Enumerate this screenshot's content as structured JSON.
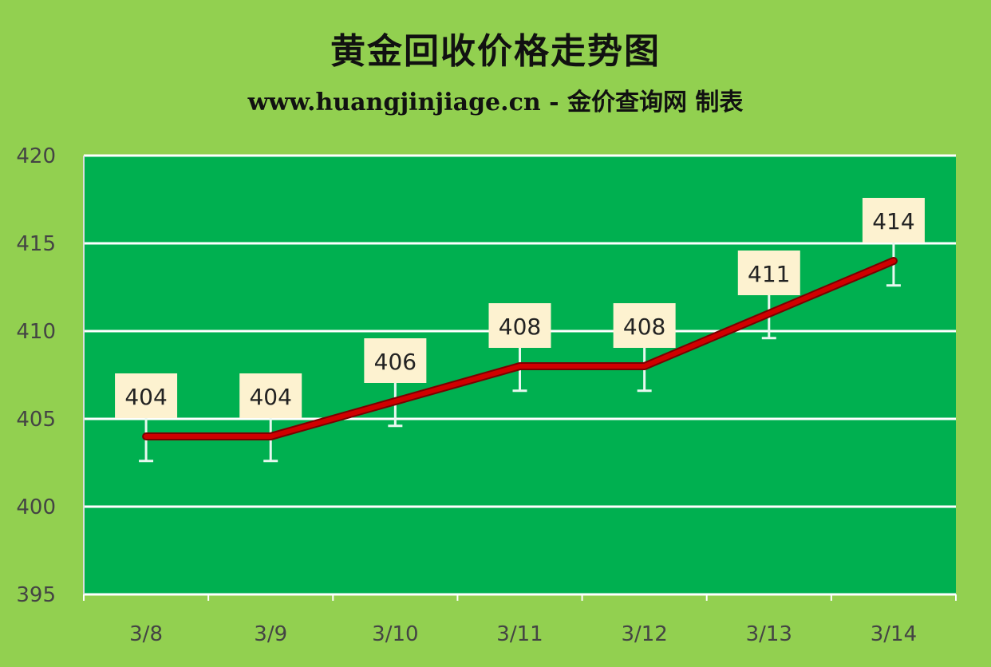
{
  "title": "黄金回收价格走势图",
  "subtitle": "www.huangjinjiage.cn - 金价查询网 制表",
  "colors": {
    "background": "#92d050",
    "plot": "#00b050",
    "line": "#d00000",
    "label_box": "#fdf2d0",
    "grid": "#ffffff"
  },
  "chart_data": {
    "type": "line",
    "title": "黄金回收价格走势图",
    "subtitle": "www.huangjinjiage.cn - 金价查询网 制表",
    "categories": [
      "3/8",
      "3/9",
      "3/10",
      "3/11",
      "3/12",
      "3/13",
      "3/14"
    ],
    "values": [
      404,
      404,
      406,
      408,
      408,
      411,
      414
    ],
    "data_labels": [
      "404",
      "404",
      "406",
      "408",
      "408",
      "411",
      "414"
    ],
    "error_bars": true,
    "ylim": [
      395,
      420
    ],
    "yticks": [
      395,
      400,
      405,
      410,
      415,
      420
    ],
    "grid": true,
    "xlabel": "",
    "ylabel": ""
  }
}
